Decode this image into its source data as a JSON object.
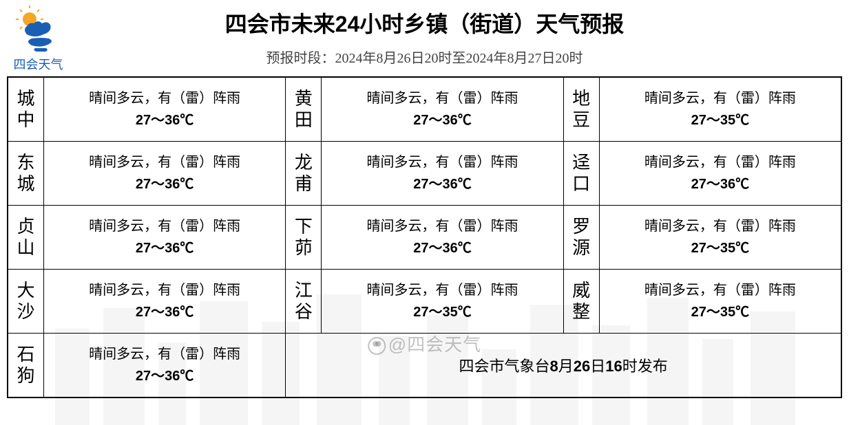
{
  "logo_text": "四会天气",
  "title_prefix": "四会市未来",
  "title_hours": "24",
  "title_suffix": "小时乡镇（街道）天气预报",
  "subtitle": "预报时段：2024年8月26日20时至2024年8月27日20时",
  "common_desc": "晴间多云，有（雷）阵雨",
  "rows": [
    [
      {
        "name": "城中",
        "temp": "27～36℃"
      },
      {
        "name": "黄田",
        "temp": "27～36℃"
      },
      {
        "name": "地豆",
        "temp": "27～35℃"
      }
    ],
    [
      {
        "name": "东城",
        "temp": "27～36℃"
      },
      {
        "name": "龙甫",
        "temp": "27～36℃"
      },
      {
        "name": "迳口",
        "temp": "27～36℃"
      }
    ],
    [
      {
        "name": "贞山",
        "temp": "27～36℃"
      },
      {
        "name": "下茆",
        "temp": "27～36℃"
      },
      {
        "name": "罗源",
        "temp": "27～35℃"
      }
    ],
    [
      {
        "name": "大沙",
        "temp": "27～36℃"
      },
      {
        "name": "江谷",
        "temp": "27～35℃"
      },
      {
        "name": "威整",
        "temp": "27～35℃"
      }
    ]
  ],
  "last_row": {
    "name": "石狗",
    "temp": "27～36℃"
  },
  "footer_prefix": "四会市气象台",
  "footer_month": "8",
  "footer_mid1": "月",
  "footer_day": "26",
  "footer_mid2": "日",
  "footer_hour": "16",
  "footer_suffix": "时发布",
  "watermark": "@四会天气",
  "colors": {
    "border": "#000000",
    "text": "#000000",
    "logo_blue": "#1a5fb4",
    "logo_orange": "#f5a623",
    "watermark": "rgba(120,120,120,0.45)"
  }
}
